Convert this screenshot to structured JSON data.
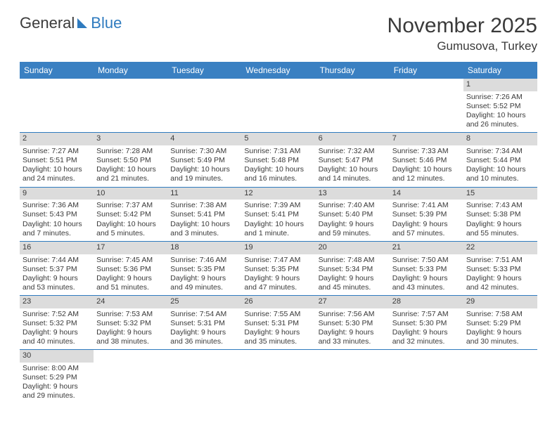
{
  "logo": {
    "text1": "General",
    "text2": "Blue"
  },
  "title": {
    "month": "November 2025",
    "location": "Gumusova, Turkey"
  },
  "colors": {
    "header_bg": "#3a80c2",
    "header_fg": "#ffffff",
    "daynum_bg": "#dcdcdc",
    "cell_border": "#2f7bbf",
    "text": "#3a3a3a",
    "logo_blue": "#2f7bbf"
  },
  "weekdays": [
    "Sunday",
    "Monday",
    "Tuesday",
    "Wednesday",
    "Thursday",
    "Friday",
    "Saturday"
  ],
  "weeks": [
    [
      null,
      null,
      null,
      null,
      null,
      null,
      {
        "n": "1",
        "sr": "Sunrise: 7:26 AM",
        "ss": "Sunset: 5:52 PM",
        "dl": "Daylight: 10 hours and 26 minutes."
      }
    ],
    [
      {
        "n": "2",
        "sr": "Sunrise: 7:27 AM",
        "ss": "Sunset: 5:51 PM",
        "dl": "Daylight: 10 hours and 24 minutes."
      },
      {
        "n": "3",
        "sr": "Sunrise: 7:28 AM",
        "ss": "Sunset: 5:50 PM",
        "dl": "Daylight: 10 hours and 21 minutes."
      },
      {
        "n": "4",
        "sr": "Sunrise: 7:30 AM",
        "ss": "Sunset: 5:49 PM",
        "dl": "Daylight: 10 hours and 19 minutes."
      },
      {
        "n": "5",
        "sr": "Sunrise: 7:31 AM",
        "ss": "Sunset: 5:48 PM",
        "dl": "Daylight: 10 hours and 16 minutes."
      },
      {
        "n": "6",
        "sr": "Sunrise: 7:32 AM",
        "ss": "Sunset: 5:47 PM",
        "dl": "Daylight: 10 hours and 14 minutes."
      },
      {
        "n": "7",
        "sr": "Sunrise: 7:33 AM",
        "ss": "Sunset: 5:46 PM",
        "dl": "Daylight: 10 hours and 12 minutes."
      },
      {
        "n": "8",
        "sr": "Sunrise: 7:34 AM",
        "ss": "Sunset: 5:44 PM",
        "dl": "Daylight: 10 hours and 10 minutes."
      }
    ],
    [
      {
        "n": "9",
        "sr": "Sunrise: 7:36 AM",
        "ss": "Sunset: 5:43 PM",
        "dl": "Daylight: 10 hours and 7 minutes."
      },
      {
        "n": "10",
        "sr": "Sunrise: 7:37 AM",
        "ss": "Sunset: 5:42 PM",
        "dl": "Daylight: 10 hours and 5 minutes."
      },
      {
        "n": "11",
        "sr": "Sunrise: 7:38 AM",
        "ss": "Sunset: 5:41 PM",
        "dl": "Daylight: 10 hours and 3 minutes."
      },
      {
        "n": "12",
        "sr": "Sunrise: 7:39 AM",
        "ss": "Sunset: 5:41 PM",
        "dl": "Daylight: 10 hours and 1 minute."
      },
      {
        "n": "13",
        "sr": "Sunrise: 7:40 AM",
        "ss": "Sunset: 5:40 PM",
        "dl": "Daylight: 9 hours and 59 minutes."
      },
      {
        "n": "14",
        "sr": "Sunrise: 7:41 AM",
        "ss": "Sunset: 5:39 PM",
        "dl": "Daylight: 9 hours and 57 minutes."
      },
      {
        "n": "15",
        "sr": "Sunrise: 7:43 AM",
        "ss": "Sunset: 5:38 PM",
        "dl": "Daylight: 9 hours and 55 minutes."
      }
    ],
    [
      {
        "n": "16",
        "sr": "Sunrise: 7:44 AM",
        "ss": "Sunset: 5:37 PM",
        "dl": "Daylight: 9 hours and 53 minutes."
      },
      {
        "n": "17",
        "sr": "Sunrise: 7:45 AM",
        "ss": "Sunset: 5:36 PM",
        "dl": "Daylight: 9 hours and 51 minutes."
      },
      {
        "n": "18",
        "sr": "Sunrise: 7:46 AM",
        "ss": "Sunset: 5:35 PM",
        "dl": "Daylight: 9 hours and 49 minutes."
      },
      {
        "n": "19",
        "sr": "Sunrise: 7:47 AM",
        "ss": "Sunset: 5:35 PM",
        "dl": "Daylight: 9 hours and 47 minutes."
      },
      {
        "n": "20",
        "sr": "Sunrise: 7:48 AM",
        "ss": "Sunset: 5:34 PM",
        "dl": "Daylight: 9 hours and 45 minutes."
      },
      {
        "n": "21",
        "sr": "Sunrise: 7:50 AM",
        "ss": "Sunset: 5:33 PM",
        "dl": "Daylight: 9 hours and 43 minutes."
      },
      {
        "n": "22",
        "sr": "Sunrise: 7:51 AM",
        "ss": "Sunset: 5:33 PM",
        "dl": "Daylight: 9 hours and 42 minutes."
      }
    ],
    [
      {
        "n": "23",
        "sr": "Sunrise: 7:52 AM",
        "ss": "Sunset: 5:32 PM",
        "dl": "Daylight: 9 hours and 40 minutes."
      },
      {
        "n": "24",
        "sr": "Sunrise: 7:53 AM",
        "ss": "Sunset: 5:32 PM",
        "dl": "Daylight: 9 hours and 38 minutes."
      },
      {
        "n": "25",
        "sr": "Sunrise: 7:54 AM",
        "ss": "Sunset: 5:31 PM",
        "dl": "Daylight: 9 hours and 36 minutes."
      },
      {
        "n": "26",
        "sr": "Sunrise: 7:55 AM",
        "ss": "Sunset: 5:31 PM",
        "dl": "Daylight: 9 hours and 35 minutes."
      },
      {
        "n": "27",
        "sr": "Sunrise: 7:56 AM",
        "ss": "Sunset: 5:30 PM",
        "dl": "Daylight: 9 hours and 33 minutes."
      },
      {
        "n": "28",
        "sr": "Sunrise: 7:57 AM",
        "ss": "Sunset: 5:30 PM",
        "dl": "Daylight: 9 hours and 32 minutes."
      },
      {
        "n": "29",
        "sr": "Sunrise: 7:58 AM",
        "ss": "Sunset: 5:29 PM",
        "dl": "Daylight: 9 hours and 30 minutes."
      }
    ],
    [
      {
        "n": "30",
        "sr": "Sunrise: 8:00 AM",
        "ss": "Sunset: 5:29 PM",
        "dl": "Daylight: 9 hours and 29 minutes."
      },
      null,
      null,
      null,
      null,
      null,
      null
    ]
  ]
}
